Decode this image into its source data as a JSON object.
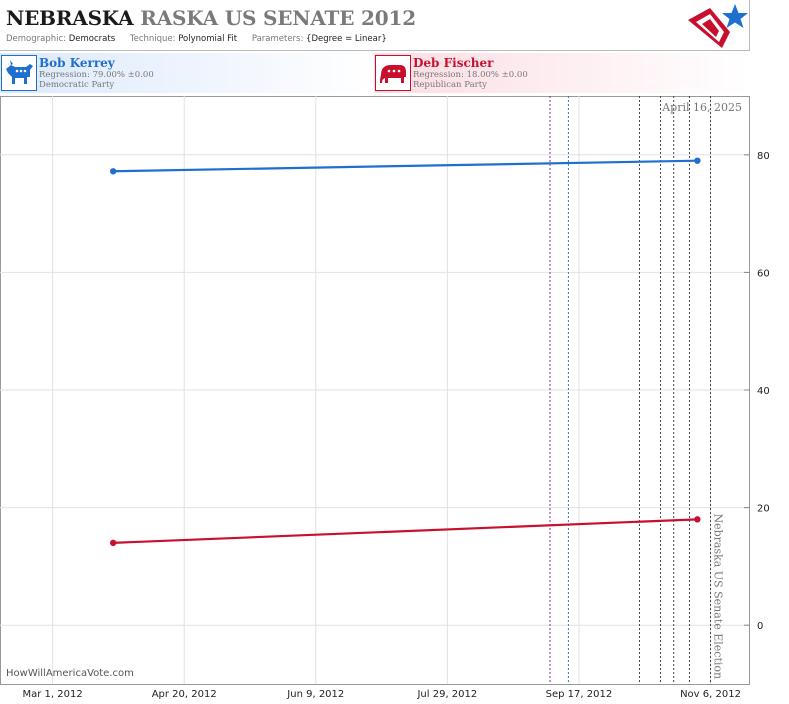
{
  "header": {
    "title_state": "NEBRASKA",
    "title_rest": "RASKA US SENATE 2012",
    "demographic_label": "Demographic:",
    "demographic_value": "Democrats",
    "technique_label": "Technique:",
    "technique_value": "Polynomial Fit",
    "parameters_label": "Parameters:",
    "parameters_value": "{Degree = Linear}"
  },
  "candidates": {
    "dem": {
      "name": "Bob Kerrey",
      "regression": "Regression: 79.00% ±0.00",
      "party": "Democratic Party"
    },
    "rep": {
      "name": "Deb Fischer",
      "regression": "Regression: 18.00% ±0.00",
      "party": "Republican Party"
    }
  },
  "chart_data": {
    "type": "line",
    "x_ticks": [
      "Mar 1, 2012",
      "Apr 20, 2012",
      "Jun 9, 2012",
      "Jul 29, 2012",
      "Sep 17, 2012",
      "Nov 6, 2012"
    ],
    "xlim": [
      "2012-02-10",
      "2012-11-21"
    ],
    "y_ticks": [
      0,
      20,
      40,
      60,
      80
    ],
    "ylim": [
      -10,
      90
    ],
    "grid": true,
    "series": [
      {
        "name": "Bob Kerrey",
        "color": "#1f6fd1",
        "x": [
          "2012-03-24",
          "2012-11-01"
        ],
        "y": [
          77.2,
          79.0
        ]
      },
      {
        "name": "Deb Fischer",
        "color": "#c8102e",
        "x": [
          "2012-03-24",
          "2012-11-01"
        ],
        "y": [
          14.0,
          18.0
        ]
      }
    ],
    "event_lines": [
      {
        "x": "2012-09-06",
        "color": "#8a2a9a"
      },
      {
        "x": "2012-09-13",
        "color": "#3a7ab8"
      },
      {
        "x": "2012-10-10",
        "color": "#445"
      },
      {
        "x": "2012-10-18",
        "color": "#445"
      },
      {
        "x": "2012-10-23",
        "color": "#445"
      },
      {
        "x": "2012-10-29",
        "color": "#445"
      },
      {
        "x": "2012-11-06",
        "color": "#445"
      }
    ],
    "annotations": {
      "top_date": "April 16, 2025",
      "election_label": "Nebraska US Senate Election",
      "credit": "HowWillAmericaVote.com"
    }
  }
}
